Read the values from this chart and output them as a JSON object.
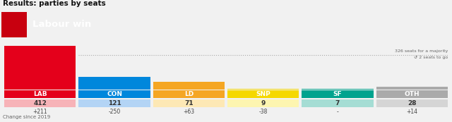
{
  "title": "Results: parties by seats",
  "header_label": "Labour win",
  "header_bg": "#e4001b",
  "parties": [
    "LAB",
    "CON",
    "LD",
    "SNP",
    "SF",
    "OTH"
  ],
  "seats": [
    412,
    121,
    71,
    9,
    7,
    28
  ],
  "changes": [
    "+211",
    "-250",
    "+63",
    "-38",
    "-",
    "+14"
  ],
  "bar_colors": [
    "#e4001b",
    "#0087dc",
    "#f5a623",
    "#f5d800",
    "#00a38e",
    "#aaaaaa"
  ],
  "label_bg_colors": [
    "#e4001b",
    "#0087dc",
    "#f5a623",
    "#f5d800",
    "#00a38e",
    "#aaaaaa"
  ],
  "seat_bg_colors": [
    "#f7b3b8",
    "#b3d4f5",
    "#fde8b5",
    "#fdf5b0",
    "#a5ddd4",
    "#d5d5d5"
  ],
  "majority_seats": 326,
  "majority_label": "326 seats for a majority",
  "majority_sub": "↺ 2 seats to go",
  "change_label": "Change since 2019",
  "bg_color": "#f1f1f1",
  "white": "#ffffff",
  "title_fontsize": 7.5,
  "header_fontsize": 9.5,
  "party_fontsize": 6.5,
  "seat_fontsize": 6.5,
  "change_fontsize": 5.5,
  "note_fontsize": 5.0
}
